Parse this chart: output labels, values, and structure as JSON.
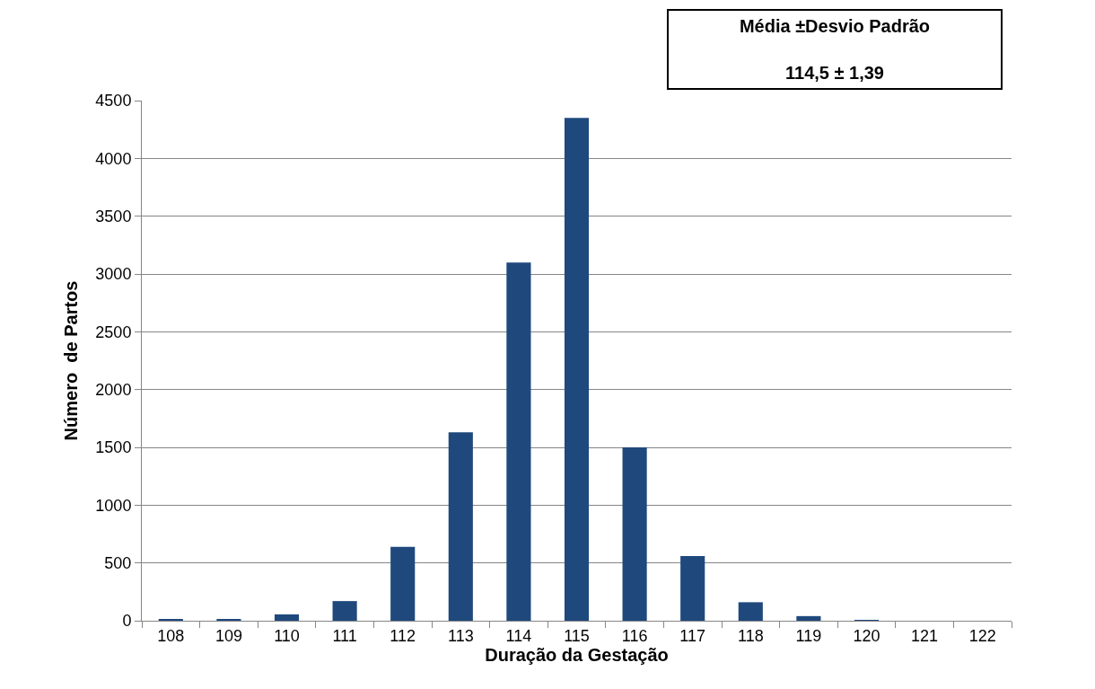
{
  "chart_data": {
    "type": "bar",
    "xlabel": "Duração da Gestação",
    "ylabel": "Número  de Partos",
    "categories": [
      "108",
      "109",
      "110",
      "111",
      "112",
      "113",
      "114",
      "115",
      "116",
      "117",
      "118",
      "119",
      "120",
      "121",
      "122"
    ],
    "values": [
      10,
      10,
      55,
      170,
      640,
      1630,
      3100,
      4350,
      1500,
      560,
      160,
      40,
      5,
      0,
      0
    ],
    "color": "#1f497d",
    "ylim": [
      0,
      4500
    ],
    "yticks": [
      0,
      500,
      1000,
      1500,
      2000,
      2500,
      3000,
      3500,
      4000,
      4500
    ],
    "grid": "y",
    "legend": false,
    "annotations": [
      "Média ±Desvio Padrão",
      "114,5 ± 1,39"
    ]
  }
}
